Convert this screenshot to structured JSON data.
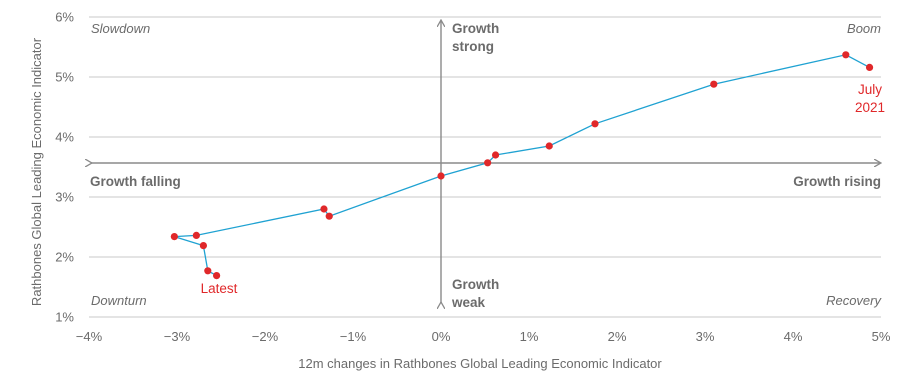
{
  "chart_data": {
    "type": "scatter",
    "xlabel": "12m changes in Rathbones Global Leading Economic Indicator",
    "ylabel": "Rathbones Global Leading Economic Indicator",
    "xlim": [
      -4,
      5
    ],
    "ylim": [
      1,
      6
    ],
    "x_ticks": [
      "−4%",
      "−3%",
      "−2%",
      "−1%",
      "0%",
      "1%",
      "2%",
      "3%",
      "4%",
      "5%"
    ],
    "y_ticks": [
      "1%",
      "2%",
      "3%",
      "4%",
      "5%",
      "6%"
    ],
    "grid": "horizontal",
    "line_color": "#1fa2d2",
    "point_color": "#e0282a",
    "points": [
      {
        "x": 4.87,
        "y": 5.16
      },
      {
        "x": 4.6,
        "y": 5.37
      },
      {
        "x": 3.1,
        "y": 4.88
      },
      {
        "x": 1.75,
        "y": 4.22
      },
      {
        "x": 1.23,
        "y": 3.85
      },
      {
        "x": 0.62,
        "y": 3.7
      },
      {
        "x": 0.53,
        "y": 3.57
      },
      {
        "x": 0.0,
        "y": 3.35
      },
      {
        "x": -1.27,
        "y": 2.68
      },
      {
        "x": -1.33,
        "y": 2.8
      },
      {
        "x": -2.78,
        "y": 2.36
      },
      {
        "x": -3.03,
        "y": 2.34
      },
      {
        "x": -2.7,
        "y": 2.19
      },
      {
        "x": -2.65,
        "y": 1.77
      },
      {
        "x": -2.55,
        "y": 1.69
      }
    ],
    "quadrants": {
      "top_left": "Slowdown",
      "top_right": "Boom",
      "bottom_left": "Downturn",
      "bottom_right": "Recovery"
    },
    "arrow_labels": {
      "up_line1": "Growth",
      "up_line2": "strong",
      "down_line1": "Growth",
      "down_line2": "weak",
      "left": "Growth falling",
      "right": "Growth rising"
    },
    "annotations": {
      "start_line1": "July",
      "start_line2": "2021",
      "end": "Latest"
    }
  }
}
